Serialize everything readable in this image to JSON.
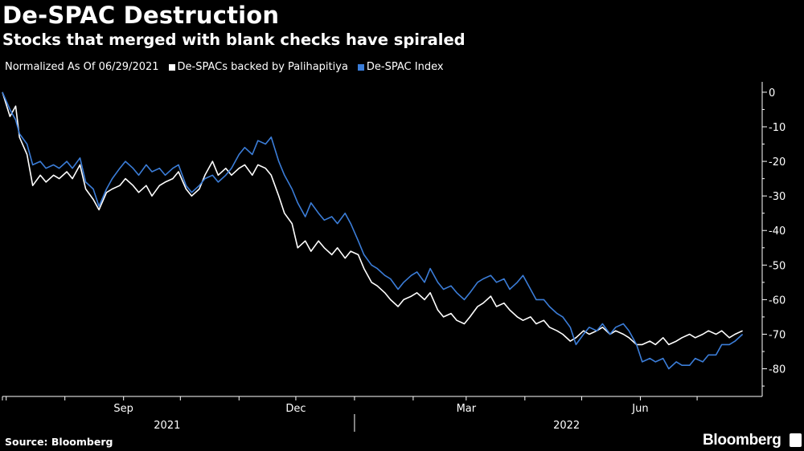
{
  "header": {
    "title": "De-SPAC Destruction",
    "subtitle": "Stocks that merged with blank checks have spiraled"
  },
  "legend": {
    "note": "Normalized As Of 06/29/2021",
    "items": [
      {
        "label": "De-SPACs backed by Palihapitiya",
        "color": "#ffffff"
      },
      {
        "label": "De-SPAC Index",
        "color": "#3b7dd8"
      }
    ]
  },
  "footer": {
    "source": "Source: Bloomberg",
    "brand": "Bloomberg"
  },
  "chart_data": {
    "type": "line",
    "title": "De-SPAC Destruction",
    "subtitle": "Stocks that merged with blank checks have spiraled",
    "xlabel": "",
    "ylabel": "",
    "xlim": [
      "2021-06-29",
      "2022-07-29"
    ],
    "ylim": [
      -88,
      3
    ],
    "y_ticks": [
      0,
      -10,
      -20,
      -30,
      -40,
      -50,
      -60,
      -70,
      -80
    ],
    "x_ticks": [
      {
        "label": "Sep",
        "date": "2021-09-01"
      },
      {
        "label": "Dec",
        "date": "2021-12-01"
      },
      {
        "label": "Mar",
        "date": "2022-03-01"
      },
      {
        "label": "Jun",
        "date": "2022-06-01"
      }
    ],
    "year_labels": [
      {
        "label": "2021",
        "date": "2021-09-24"
      },
      {
        "label": "2022",
        "date": "2022-04-23"
      }
    ],
    "year_divider": "2022-01-01",
    "grid": false,
    "y_axis_position": "right",
    "series": [
      {
        "name": "De-SPACs backed by Palihapitiya",
        "color": "#ffffff",
        "points": [
          [
            "2021-06-29",
            0
          ],
          [
            "2021-07-03",
            -7
          ],
          [
            "2021-07-06",
            -4
          ],
          [
            "2021-07-08",
            -13
          ],
          [
            "2021-07-12",
            -18
          ],
          [
            "2021-07-15",
            -27
          ],
          [
            "2021-07-19",
            -24
          ],
          [
            "2021-07-22",
            -26
          ],
          [
            "2021-07-26",
            -24
          ],
          [
            "2021-07-29",
            -25
          ],
          [
            "2021-08-02",
            -23
          ],
          [
            "2021-08-05",
            -25
          ],
          [
            "2021-08-09",
            -21
          ],
          [
            "2021-08-12",
            -28
          ],
          [
            "2021-08-16",
            -31
          ],
          [
            "2021-08-19",
            -34
          ],
          [
            "2021-08-23",
            -29
          ],
          [
            "2021-08-26",
            -28
          ],
          [
            "2021-08-30",
            -27
          ],
          [
            "2021-09-02",
            -25
          ],
          [
            "2021-09-06",
            -27
          ],
          [
            "2021-09-09",
            -29
          ],
          [
            "2021-09-13",
            -27
          ],
          [
            "2021-09-16",
            -30
          ],
          [
            "2021-09-20",
            -27
          ],
          [
            "2021-09-23",
            -26
          ],
          [
            "2021-09-27",
            -25
          ],
          [
            "2021-09-30",
            -23
          ],
          [
            "2021-10-04",
            -28
          ],
          [
            "2021-10-07",
            -30
          ],
          [
            "2021-10-11",
            -28
          ],
          [
            "2021-10-14",
            -24
          ],
          [
            "2021-10-18",
            -20
          ],
          [
            "2021-10-21",
            -24
          ],
          [
            "2021-10-25",
            -22
          ],
          [
            "2021-10-28",
            -24
          ],
          [
            "2021-11-01",
            -22
          ],
          [
            "2021-11-04",
            -21
          ],
          [
            "2021-11-08",
            -24
          ],
          [
            "2021-11-11",
            -21
          ],
          [
            "2021-11-15",
            -22
          ],
          [
            "2021-11-18",
            -24
          ],
          [
            "2021-11-22",
            -30
          ],
          [
            "2021-11-25",
            -35
          ],
          [
            "2021-11-29",
            -38
          ],
          [
            "2021-12-02",
            -45
          ],
          [
            "2021-12-06",
            -43
          ],
          [
            "2021-12-09",
            -46
          ],
          [
            "2021-12-13",
            -43
          ],
          [
            "2021-12-16",
            -45
          ],
          [
            "2021-12-20",
            -47
          ],
          [
            "2021-12-23",
            -45
          ],
          [
            "2021-12-27",
            -48
          ],
          [
            "2021-12-30",
            -46
          ],
          [
            "2022-01-03",
            -47
          ],
          [
            "2022-01-06",
            -51
          ],
          [
            "2022-01-10",
            -55
          ],
          [
            "2022-01-13",
            -56
          ],
          [
            "2022-01-17",
            -58
          ],
          [
            "2022-01-20",
            -60
          ],
          [
            "2022-01-24",
            -62
          ],
          [
            "2022-01-27",
            -60
          ],
          [
            "2022-01-31",
            -59
          ],
          [
            "2022-02-03",
            -58
          ],
          [
            "2022-02-07",
            -60
          ],
          [
            "2022-02-10",
            -58
          ],
          [
            "2022-02-14",
            -63
          ],
          [
            "2022-02-17",
            -65
          ],
          [
            "2022-02-21",
            -64
          ],
          [
            "2022-02-24",
            -66
          ],
          [
            "2022-02-28",
            -67
          ],
          [
            "2022-03-03",
            -65
          ],
          [
            "2022-03-07",
            -62
          ],
          [
            "2022-03-10",
            -61
          ],
          [
            "2022-03-14",
            -59
          ],
          [
            "2022-03-17",
            -62
          ],
          [
            "2022-03-21",
            -61
          ],
          [
            "2022-03-24",
            -63
          ],
          [
            "2022-03-28",
            -65
          ],
          [
            "2022-03-31",
            -66
          ],
          [
            "2022-04-04",
            -65
          ],
          [
            "2022-04-07",
            -67
          ],
          [
            "2022-04-11",
            -66
          ],
          [
            "2022-04-14",
            -68
          ],
          [
            "2022-04-18",
            -69
          ],
          [
            "2022-04-21",
            -70
          ],
          [
            "2022-04-25",
            -72
          ],
          [
            "2022-04-28",
            -71
          ],
          [
            "2022-05-02",
            -69
          ],
          [
            "2022-05-05",
            -70
          ],
          [
            "2022-05-09",
            -69
          ],
          [
            "2022-05-12",
            -68
          ],
          [
            "2022-05-16",
            -70
          ],
          [
            "2022-05-19",
            -69
          ],
          [
            "2022-05-23",
            -70
          ],
          [
            "2022-05-26",
            -71
          ],
          [
            "2022-05-30",
            -73
          ],
          [
            "2022-06-02",
            -73
          ],
          [
            "2022-06-06",
            -72
          ],
          [
            "2022-06-09",
            -73
          ],
          [
            "2022-06-13",
            -71
          ],
          [
            "2022-06-16",
            -73
          ],
          [
            "2022-06-20",
            -72
          ],
          [
            "2022-06-23",
            -71
          ],
          [
            "2022-06-27",
            -70
          ],
          [
            "2022-06-30",
            -71
          ],
          [
            "2022-07-04",
            -70
          ],
          [
            "2022-07-07",
            -69
          ],
          [
            "2022-07-11",
            -70
          ],
          [
            "2022-07-14",
            -69
          ],
          [
            "2022-07-18",
            -71
          ],
          [
            "2022-07-21",
            -70
          ],
          [
            "2022-07-25",
            -69
          ]
        ]
      },
      {
        "name": "De-SPAC Index",
        "color": "#3b7dd8",
        "points": [
          [
            "2021-06-29",
            0
          ],
          [
            "2021-07-03",
            -5
          ],
          [
            "2021-07-06",
            -8
          ],
          [
            "2021-07-08",
            -12
          ],
          [
            "2021-07-12",
            -15
          ],
          [
            "2021-07-15",
            -21
          ],
          [
            "2021-07-19",
            -20
          ],
          [
            "2021-07-22",
            -22
          ],
          [
            "2021-07-26",
            -21
          ],
          [
            "2021-07-29",
            -22
          ],
          [
            "2021-08-02",
            -20
          ],
          [
            "2021-08-05",
            -22
          ],
          [
            "2021-08-09",
            -19
          ],
          [
            "2021-08-12",
            -26
          ],
          [
            "2021-08-16",
            -28
          ],
          [
            "2021-08-19",
            -33
          ],
          [
            "2021-08-23",
            -28
          ],
          [
            "2021-08-26",
            -25
          ],
          [
            "2021-08-30",
            -22
          ],
          [
            "2021-09-02",
            -20
          ],
          [
            "2021-09-06",
            -22
          ],
          [
            "2021-09-09",
            -24
          ],
          [
            "2021-09-13",
            -21
          ],
          [
            "2021-09-16",
            -23
          ],
          [
            "2021-09-20",
            -22
          ],
          [
            "2021-09-23",
            -24
          ],
          [
            "2021-09-27",
            -22
          ],
          [
            "2021-09-30",
            -21
          ],
          [
            "2021-10-04",
            -27
          ],
          [
            "2021-10-07",
            -29
          ],
          [
            "2021-10-11",
            -27
          ],
          [
            "2021-10-14",
            -25
          ],
          [
            "2021-10-18",
            -24
          ],
          [
            "2021-10-21",
            -26
          ],
          [
            "2021-10-25",
            -24
          ],
          [
            "2021-10-28",
            -22
          ],
          [
            "2021-11-01",
            -18
          ],
          [
            "2021-11-04",
            -16
          ],
          [
            "2021-11-08",
            -18
          ],
          [
            "2021-11-11",
            -14
          ],
          [
            "2021-11-15",
            -15
          ],
          [
            "2021-11-18",
            -13
          ],
          [
            "2021-11-22",
            -20
          ],
          [
            "2021-11-25",
            -24
          ],
          [
            "2021-11-29",
            -28
          ],
          [
            "2021-12-02",
            -32
          ],
          [
            "2021-12-06",
            -36
          ],
          [
            "2021-12-09",
            -32
          ],
          [
            "2021-12-13",
            -35
          ],
          [
            "2021-12-16",
            -37
          ],
          [
            "2021-12-20",
            -36
          ],
          [
            "2021-12-23",
            -38
          ],
          [
            "2021-12-27",
            -35
          ],
          [
            "2021-12-30",
            -38
          ],
          [
            "2022-01-03",
            -43
          ],
          [
            "2022-01-06",
            -47
          ],
          [
            "2022-01-10",
            -50
          ],
          [
            "2022-01-13",
            -51
          ],
          [
            "2022-01-17",
            -53
          ],
          [
            "2022-01-20",
            -54
          ],
          [
            "2022-01-24",
            -57
          ],
          [
            "2022-01-27",
            -55
          ],
          [
            "2022-01-31",
            -53
          ],
          [
            "2022-02-03",
            -52
          ],
          [
            "2022-02-07",
            -55
          ],
          [
            "2022-02-10",
            -51
          ],
          [
            "2022-02-14",
            -55
          ],
          [
            "2022-02-17",
            -57
          ],
          [
            "2022-02-21",
            -56
          ],
          [
            "2022-02-24",
            -58
          ],
          [
            "2022-02-28",
            -60
          ],
          [
            "2022-03-03",
            -58
          ],
          [
            "2022-03-07",
            -55
          ],
          [
            "2022-03-10",
            -54
          ],
          [
            "2022-03-14",
            -53
          ],
          [
            "2022-03-17",
            -55
          ],
          [
            "2022-03-21",
            -54
          ],
          [
            "2022-03-24",
            -57
          ],
          [
            "2022-03-28",
            -55
          ],
          [
            "2022-03-31",
            -53
          ],
          [
            "2022-04-04",
            -57
          ],
          [
            "2022-04-07",
            -60
          ],
          [
            "2022-04-11",
            -60
          ],
          [
            "2022-04-14",
            -62
          ],
          [
            "2022-04-18",
            -64
          ],
          [
            "2022-04-21",
            -65
          ],
          [
            "2022-04-25",
            -68
          ],
          [
            "2022-04-28",
            -73
          ],
          [
            "2022-05-02",
            -70
          ],
          [
            "2022-05-05",
            -68
          ],
          [
            "2022-05-09",
            -69
          ],
          [
            "2022-05-12",
            -67
          ],
          [
            "2022-05-16",
            -70
          ],
          [
            "2022-05-19",
            -68
          ],
          [
            "2022-05-23",
            -67
          ],
          [
            "2022-05-26",
            -69
          ],
          [
            "2022-05-30",
            -73
          ],
          [
            "2022-06-02",
            -78
          ],
          [
            "2022-06-06",
            -77
          ],
          [
            "2022-06-09",
            -78
          ],
          [
            "2022-06-13",
            -77
          ],
          [
            "2022-06-16",
            -80
          ],
          [
            "2022-06-20",
            -78
          ],
          [
            "2022-06-23",
            -79
          ],
          [
            "2022-06-27",
            -79
          ],
          [
            "2022-06-30",
            -77
          ],
          [
            "2022-07-04",
            -78
          ],
          [
            "2022-07-07",
            -76
          ],
          [
            "2022-07-11",
            -76
          ],
          [
            "2022-07-14",
            -73
          ],
          [
            "2022-07-18",
            -73
          ],
          [
            "2022-07-21",
            -72
          ],
          [
            "2022-07-25",
            -70
          ]
        ]
      }
    ]
  }
}
